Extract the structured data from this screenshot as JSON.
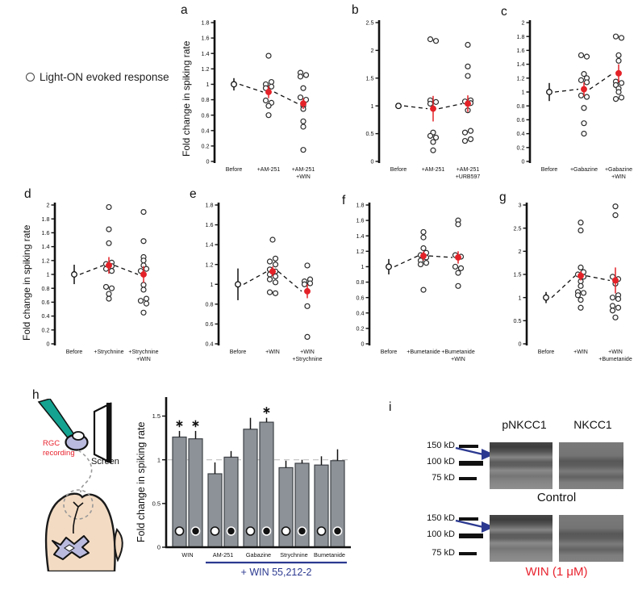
{
  "figure": {
    "legend_marker": "○",
    "legend_label": "Light-ON evoked response",
    "ylabel": "Fold change in spiking rate"
  },
  "colors": {
    "mean_marker_red": "#e32228",
    "bar_fill_gray": "#8d9298",
    "bar_stroke_gray": "#3e4247",
    "accent_blue": "#2b3990",
    "label_red": "#e8232e",
    "body_beige": "#f3dbc3",
    "brain_lavender": "#b9badd",
    "electrode_teal": "#14a390",
    "dashed_gray": "#999999"
  },
  "chart_data": [
    {
      "panel": "a",
      "letter": "a",
      "type": "scatter",
      "ylim": [
        0,
        1.8
      ],
      "ystep": 0.2,
      "categories": [
        [
          "Before"
        ],
        [
          "+AM-251"
        ],
        [
          "+AM-251",
          "+WIN"
        ]
      ],
      "means": [
        1.0,
        0.9,
        0.75
      ],
      "errors": [
        0.08,
        0.08,
        0.07
      ],
      "points": [
        [],
        [
          1.37,
          1.03,
          1.0,
          0.97,
          0.95,
          0.9,
          0.79,
          0.76,
          0.72,
          0.6
        ],
        [
          1.15,
          1.12,
          1.1,
          0.95,
          0.83,
          0.8,
          0.72,
          0.68,
          0.52,
          0.45,
          0.15
        ]
      ]
    },
    {
      "panel": "b",
      "letter": "b",
      "type": "scatter",
      "ylim": [
        0,
        2.5
      ],
      "ystep": 0.5,
      "categories": [
        [
          "Before"
        ],
        [
          "+AM-251"
        ],
        [
          "+AM-251",
          "+URB597"
        ]
      ],
      "means": [
        1.0,
        0.95,
        1.04
      ],
      "errors": [
        0.05,
        0.23,
        0.15
      ],
      "points": [
        [],
        [
          2.2,
          2.17,
          1.1,
          1.07,
          1.04,
          0.52,
          0.46,
          0.43,
          0.35,
          0.2
        ],
        [
          2.1,
          1.71,
          1.54,
          1.1,
          1.08,
          1.05,
          0.92,
          0.55,
          0.52,
          0.4,
          0.37
        ]
      ]
    },
    {
      "panel": "c",
      "letter": "c",
      "type": "scatter",
      "ylim": [
        0,
        2
      ],
      "ystep": 0.2,
      "categories": [
        [
          "Before"
        ],
        [
          "+Gabazine"
        ],
        [
          "+Gabazine",
          "+WIN"
        ]
      ],
      "means": [
        1.0,
        1.04,
        1.27
      ],
      "errors": [
        0.13,
        0.1,
        0.13
      ],
      "points": [
        [],
        [
          1.53,
          1.51,
          1.26,
          1.2,
          1.17,
          1.14,
          0.95,
          0.93,
          0.77,
          0.55,
          0.4
        ],
        [
          1.8,
          1.78,
          1.53,
          1.45,
          1.15,
          1.13,
          1.1,
          1.05,
          1.0,
          0.92,
          0.9
        ]
      ]
    },
    {
      "panel": "d",
      "letter": "d",
      "type": "scatter",
      "ylim": [
        0,
        2
      ],
      "ystep": 0.2,
      "categories": [
        [
          "Before"
        ],
        [
          "+Strychnine"
        ],
        [
          "+Strychnine",
          "+WIN"
        ]
      ],
      "means": [
        1.0,
        1.13,
        1.0
      ],
      "errors": [
        0.14,
        0.12,
        0.12
      ],
      "points": [
        [],
        [
          1.97,
          1.65,
          1.45,
          1.17,
          1.15,
          1.12,
          1.08,
          1.05,
          0.82,
          0.8,
          0.72,
          0.65
        ],
        [
          1.9,
          1.48,
          1.25,
          1.2,
          1.13,
          1.08,
          1.05,
          0.85,
          0.78,
          0.65,
          0.62,
          0.58,
          0.45
        ]
      ]
    },
    {
      "panel": "e",
      "letter": "e",
      "type": "scatter",
      "ylim": [
        0.4,
        1.8
      ],
      "ystep": 0.2,
      "categories": [
        [
          "Before"
        ],
        [
          "+WIN"
        ],
        [
          "+WIN",
          "+Strychnine"
        ]
      ],
      "means": [
        1.0,
        1.13,
        0.93
      ],
      "errors": [
        0.16,
        0.05,
        0.07
      ],
      "points": [
        [],
        [
          1.45,
          1.26,
          1.23,
          1.2,
          1.15,
          1.13,
          1.1,
          1.08,
          1.05,
          1.02,
          0.92,
          0.91
        ],
        [
          1.19,
          1.05,
          1.03,
          1.01,
          1.0,
          0.78,
          0.47
        ]
      ]
    },
    {
      "panel": "f",
      "letter": "f",
      "type": "scatter",
      "ylim": [
        0,
        1.8
      ],
      "ystep": 0.2,
      "categories": [
        [
          "Before"
        ],
        [
          "+Bumetanide"
        ],
        [
          "+Bumetanide",
          "+WIN"
        ]
      ],
      "means": [
        1.0,
        1.14,
        1.12
      ],
      "errors": [
        0.1,
        0.06,
        0.08
      ],
      "points": [
        [],
        [
          1.45,
          1.38,
          1.24,
          1.18,
          1.15,
          1.12,
          1.08,
          1.05,
          1.03,
          0.7
        ],
        [
          1.6,
          1.55,
          1.15,
          1.13,
          1.0,
          0.98,
          0.92,
          0.75
        ]
      ]
    },
    {
      "panel": "g",
      "letter": "g",
      "type": "scatter",
      "ylim": [
        0,
        3
      ],
      "ystep": 0.5,
      "categories": [
        [
          "Before"
        ],
        [
          "+WIN"
        ],
        [
          "+WIN",
          "+Bumetanide"
        ]
      ],
      "means": [
        1.0,
        1.47,
        1.37
      ],
      "errors": [
        0.12,
        0.1,
        0.28
      ],
      "points": [
        [],
        [
          2.62,
          2.45,
          1.65,
          1.55,
          1.5,
          1.45,
          1.35,
          1.25,
          1.12,
          1.1,
          1.05,
          0.95,
          0.78
        ],
        [
          2.97,
          2.78,
          1.45,
          1.4,
          1.3,
          1.05,
          1.0,
          0.97,
          0.82,
          0.78,
          0.72,
          0.57
        ]
      ]
    },
    {
      "panel": "h",
      "letter": "h",
      "type": "bar",
      "ylabel": "Fold change in spiking rate",
      "ylim": [
        0,
        1.68
      ],
      "yticks": [
        0,
        0.5,
        1,
        1.5
      ],
      "baseline": 1,
      "bar_markers": [
        "light-on-open",
        "light-off-filled"
      ],
      "groups": [
        {
          "label": "WIN",
          "values": [
            1.26,
            1.24
          ],
          "errors": [
            0.07,
            0.09
          ],
          "sig": [
            true,
            true
          ]
        },
        {
          "label": "AM-251",
          "values": [
            0.84,
            1.03
          ],
          "errors": [
            0.13,
            0.07
          ],
          "sig": [
            false,
            false
          ]
        },
        {
          "label": "Gabazine",
          "values": [
            1.35,
            1.43
          ],
          "errors": [
            0.13,
            0.05
          ],
          "sig": [
            false,
            true
          ]
        },
        {
          "label": "Strychnine",
          "values": [
            0.91,
            0.96
          ],
          "errors": [
            0.08,
            0.04
          ],
          "sig": [
            false,
            false
          ]
        },
        {
          "label": "Bumetanide",
          "values": [
            0.94,
            0.99
          ],
          "errors": [
            0.1,
            0.13
          ],
          "sig": [
            false,
            false
          ]
        }
      ],
      "win_label": "+ WIN 55,212-2",
      "win_span": [
        1,
        4
      ]
    }
  ],
  "panel_h": {
    "letter": "h",
    "rgc_line1": "RGC",
    "rgc_line2": "recording",
    "screen_label": "Screen"
  },
  "panel_i": {
    "letter": "i",
    "columns": [
      "pNKCC1",
      "NKCC1"
    ],
    "markers": [
      "150 kD",
      "100 kD",
      "75 kD"
    ],
    "condition_top": "Control",
    "condition_bottom": "WIN (1 μM)"
  }
}
